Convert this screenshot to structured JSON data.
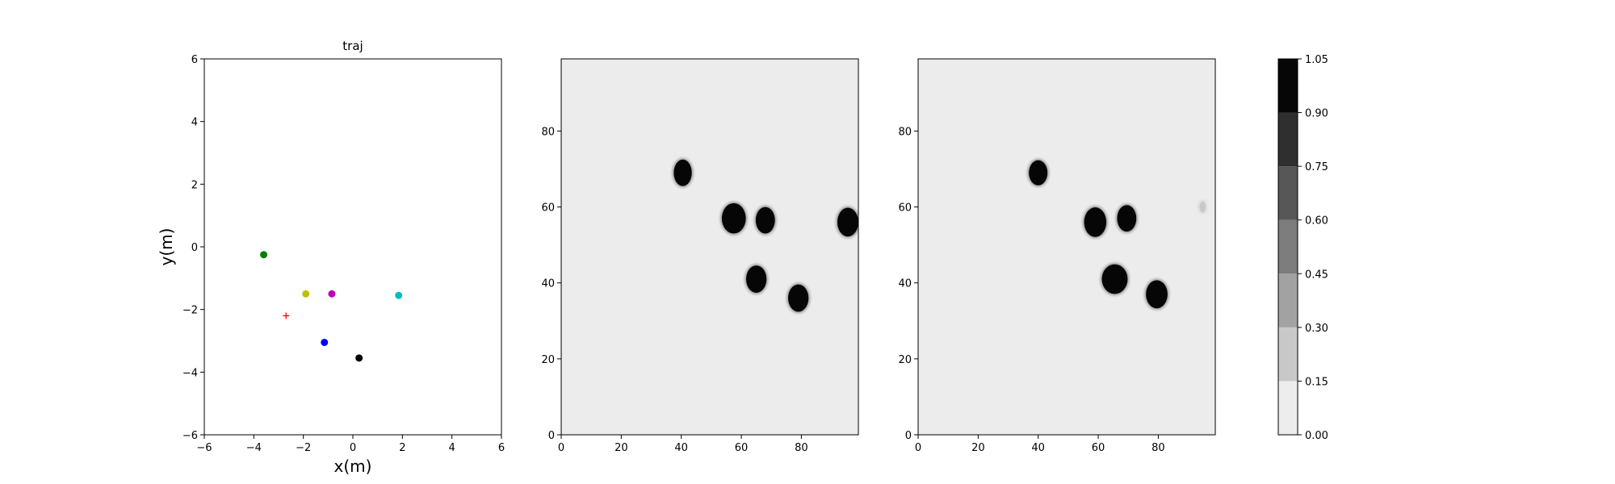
{
  "chart_data": [
    {
      "type": "scatter",
      "title": "traj",
      "xlabel": "x(m)",
      "ylabel": "y(m)",
      "xlim": [
        -6,
        6
      ],
      "ylim": [
        -6,
        6
      ],
      "xticks": [
        "−6",
        "−4",
        "−2",
        "0",
        "2",
        "4",
        "6"
      ],
      "yticks": [
        "−6",
        "−4",
        "−2",
        "0",
        "2",
        "4",
        "6"
      ],
      "grid": false,
      "series": [
        {
          "marker": "circle",
          "color": "#008000",
          "points": [
            {
              "x": -3.6,
              "y": -0.25
            }
          ]
        },
        {
          "marker": "circle",
          "color": "#bfbf00",
          "points": [
            {
              "x": -1.9,
              "y": -1.5
            }
          ]
        },
        {
          "marker": "circle",
          "color": "#bf00bf",
          "points": [
            {
              "x": -0.85,
              "y": -1.5
            }
          ]
        },
        {
          "marker": "circle",
          "color": "#00bfbf",
          "points": [
            {
              "x": 1.85,
              "y": -1.55
            }
          ]
        },
        {
          "marker": "circle",
          "color": "#0000ff",
          "points": [
            {
              "x": -1.15,
              "y": -3.05
            }
          ]
        },
        {
          "marker": "circle",
          "color": "#000000",
          "points": [
            {
              "x": 0.25,
              "y": -3.55
            }
          ]
        },
        {
          "marker": "plus",
          "color": "#ff0000",
          "points": [
            {
              "x": -2.7,
              "y": -2.2
            }
          ]
        }
      ]
    },
    {
      "type": "heatmap",
      "xlim": [
        0,
        99
      ],
      "ylim": [
        0,
        99
      ],
      "xticks": [
        "0",
        "20",
        "40",
        "60",
        "80"
      ],
      "yticks": [
        "0",
        "20",
        "40",
        "60",
        "80"
      ],
      "background_value": 0.05,
      "blobs": [
        {
          "x": 40.5,
          "y": 69,
          "rx": 3,
          "ry": 3.5,
          "value": 1.0
        },
        {
          "x": 57.5,
          "y": 57,
          "rx": 4,
          "ry": 4,
          "value": 1.0
        },
        {
          "x": 68,
          "y": 56.5,
          "rx": 3.2,
          "ry": 3.5,
          "value": 1.0
        },
        {
          "x": 95.5,
          "y": 56,
          "rx": 3.5,
          "ry": 3.8,
          "value": 1.0
        },
        {
          "x": 65,
          "y": 41,
          "rx": 3.4,
          "ry": 3.6,
          "value": 1.0
        },
        {
          "x": 79,
          "y": 36,
          "rx": 3.4,
          "ry": 3.6,
          "value": 1.0
        }
      ]
    },
    {
      "type": "heatmap",
      "xlim": [
        0,
        99
      ],
      "ylim": [
        0,
        99
      ],
      "xticks": [
        "0",
        "20",
        "40",
        "60",
        "80"
      ],
      "yticks": [
        "0",
        "20",
        "40",
        "60",
        "80"
      ],
      "background_value": 0.05,
      "blobs": [
        {
          "x": 40,
          "y": 69,
          "rx": 3.1,
          "ry": 3.3,
          "value": 1.0
        },
        {
          "x": 59,
          "y": 56,
          "rx": 3.7,
          "ry": 3.9,
          "value": 1.0
        },
        {
          "x": 69.5,
          "y": 57,
          "rx": 3.2,
          "ry": 3.5,
          "value": 1.0
        },
        {
          "x": 65.5,
          "y": 41,
          "rx": 4.3,
          "ry": 3.9,
          "value": 1.0
        },
        {
          "x": 79.5,
          "y": 37,
          "rx": 3.6,
          "ry": 3.7,
          "value": 1.0
        },
        {
          "x": 94.8,
          "y": 60,
          "rx": 1,
          "ry": 1.4,
          "value": 0.2
        }
      ]
    },
    {
      "type": "colorbar",
      "levels": [
        0.0,
        0.15,
        0.3,
        0.45,
        0.6,
        0.75,
        0.9,
        1.05
      ],
      "tick_labels": [
        "0.00",
        "0.15",
        "0.30",
        "0.45",
        "0.60",
        "0.75",
        "0.90",
        "1.05"
      ],
      "colors": [
        "#ececec",
        "#c8c8c8",
        "#a2a2a2",
        "#7c7c7c",
        "#575757",
        "#2f2f2f",
        "#060606"
      ]
    }
  ]
}
